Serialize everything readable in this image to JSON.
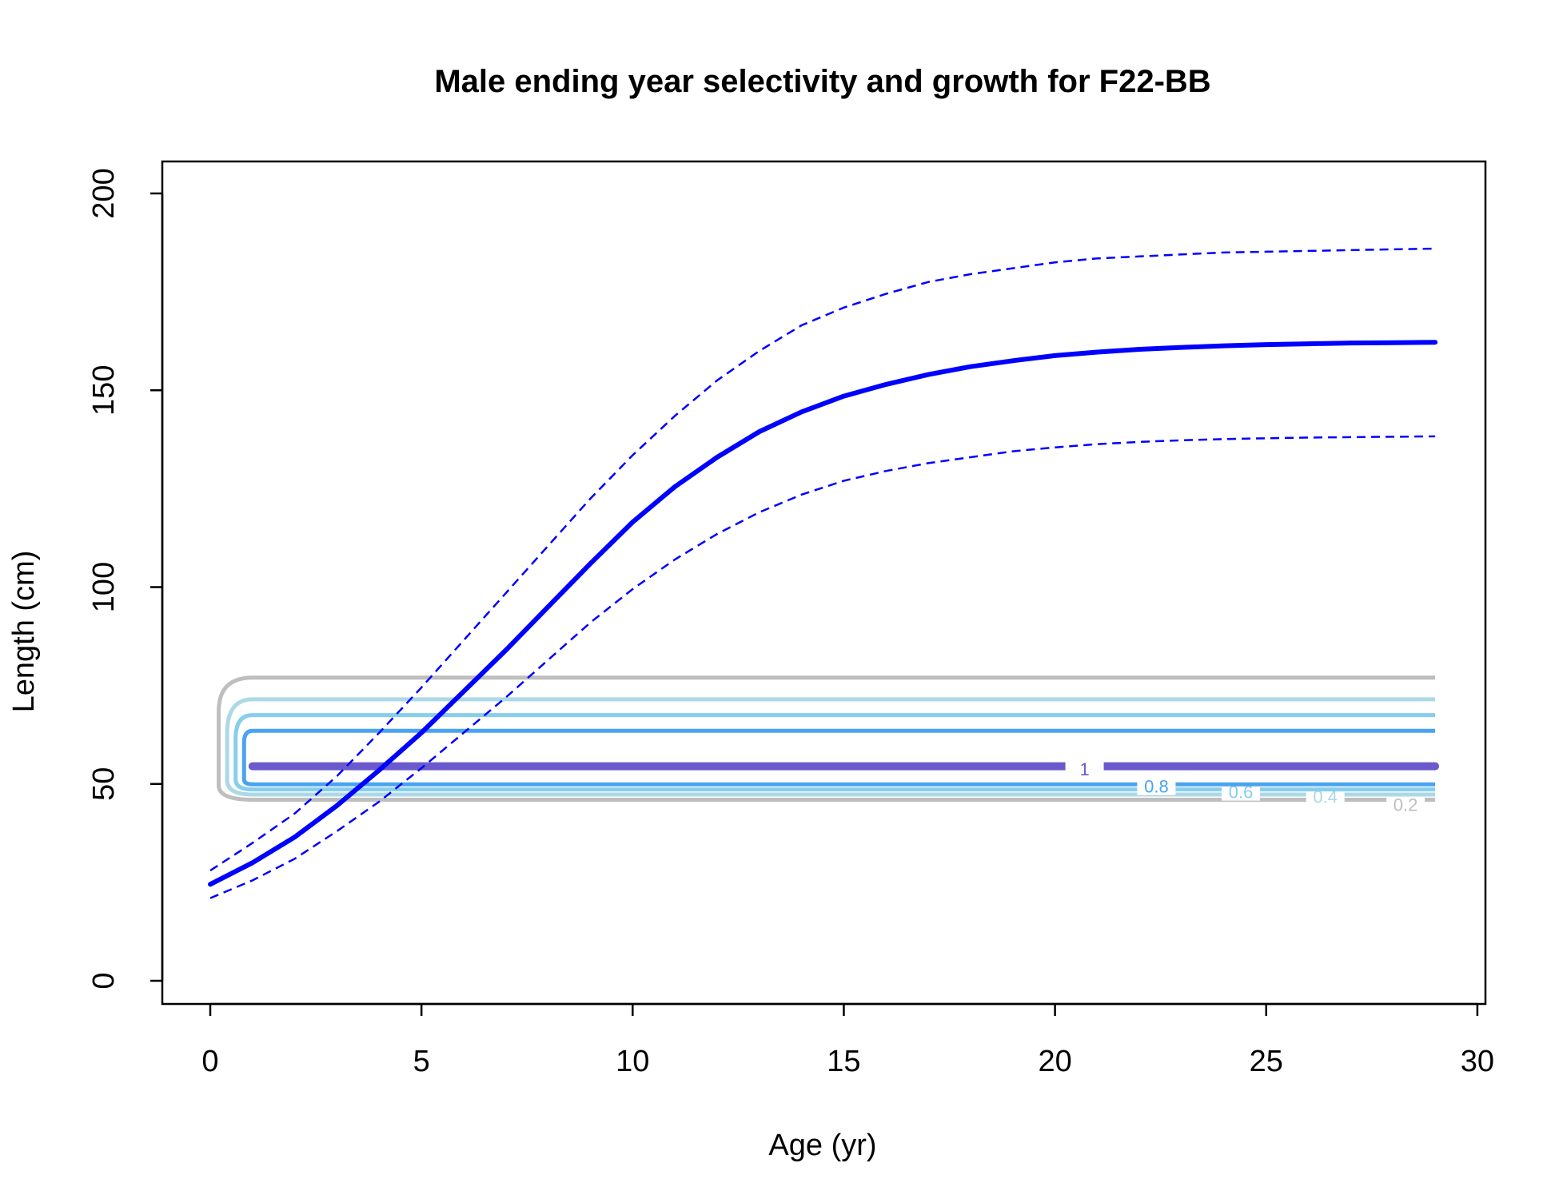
{
  "chart_data": {
    "type": "line",
    "title": "Male ending year selectivity and growth for F22-BB",
    "xlabel": "Age (yr)",
    "ylabel": "Length (cm)",
    "xlim": [
      0,
      30
    ],
    "ylim": [
      0,
      200
    ],
    "xticks": [
      "0",
      "5",
      "10",
      "15",
      "20",
      "25",
      "30"
    ],
    "yticks": [
      "0",
      "50",
      "100",
      "150",
      "200"
    ],
    "grid": false,
    "legend": "none",
    "series": [
      {
        "style": "solid",
        "color": "#0000ff",
        "x": [
          0,
          1,
          2,
          3,
          4,
          5,
          6,
          7,
          8,
          9,
          10,
          11,
          12,
          13,
          14,
          15,
          16,
          17,
          18,
          19,
          20,
          21,
          22,
          23,
          24,
          25,
          26,
          27,
          28,
          29
        ],
        "y": [
          24.5,
          30,
          36.5,
          44.5,
          53.5,
          63,
          73.5,
          84,
          95,
          106,
          116.5,
          125.5,
          133,
          139.5,
          144.5,
          148.5,
          151.5,
          154,
          156,
          157.5,
          158.8,
          159.7,
          160.4,
          160.9,
          161.3,
          161.6,
          161.8,
          162,
          162.1,
          162.2
        ]
      },
      {
        "style": "dashed",
        "color": "#0000ff",
        "x": [
          0,
          1,
          2,
          3,
          4,
          5,
          6,
          7,
          8,
          9,
          10,
          11,
          12,
          13,
          14,
          15,
          16,
          17,
          18,
          19,
          20,
          21,
          22,
          23,
          24,
          25,
          26,
          27,
          28,
          29
        ],
        "y": [
          28,
          35,
          42.5,
          52,
          63,
          74.5,
          86.5,
          98.5,
          110.5,
          122.5,
          133.5,
          143.5,
          152.5,
          160,
          166.5,
          171,
          174.5,
          177.5,
          179.5,
          181,
          182.5,
          183.5,
          184,
          184.5,
          185,
          185.2,
          185.4,
          185.6,
          185.8,
          186
        ]
      },
      {
        "style": "dashed",
        "color": "#0000ff",
        "x": [
          0,
          1,
          2,
          3,
          4,
          5,
          6,
          7,
          8,
          9,
          10,
          11,
          12,
          13,
          14,
          15,
          16,
          17,
          18,
          19,
          20,
          21,
          22,
          23,
          24,
          25,
          26,
          27,
          28,
          29
        ],
        "y": [
          21,
          25.5,
          31,
          38,
          45.5,
          54,
          63,
          72,
          81.5,
          91,
          99.5,
          107,
          113.5,
          119,
          123.5,
          127,
          129.5,
          131.5,
          133,
          134.5,
          135.5,
          136.3,
          136.9,
          137.3,
          137.6,
          137.8,
          138,
          138.1,
          138.2,
          138.3
        ]
      }
    ],
    "contours": [
      {
        "level": "0.2",
        "color": "#bebebe",
        "y_low": 46,
        "y_high": 77,
        "x_left": 0.2,
        "label_x": 28.3,
        "label_y": 45
      },
      {
        "level": "0.4",
        "color": "#add8e6",
        "y_low": 47.3,
        "y_high": 71.5,
        "x_left": 0.4,
        "label_x": 26.4,
        "label_y": 47
      },
      {
        "level": "0.6",
        "color": "#87ceeb",
        "y_low": 48.6,
        "y_high": 67.5,
        "x_left": 0.6,
        "label_x": 24.4,
        "label_y": 48.2
      },
      {
        "level": "0.8",
        "color": "#4aa3f0",
        "y_low": 49.9,
        "y_high": 63.5,
        "x_left": 0.8,
        "label_x": 22.4,
        "label_y": 49.6
      },
      {
        "level": "1",
        "color": "#6a5acd",
        "y_low": 54,
        "y_high": 55,
        "x_left": 1,
        "label_x": 20.7,
        "label_y": 54
      }
    ]
  }
}
